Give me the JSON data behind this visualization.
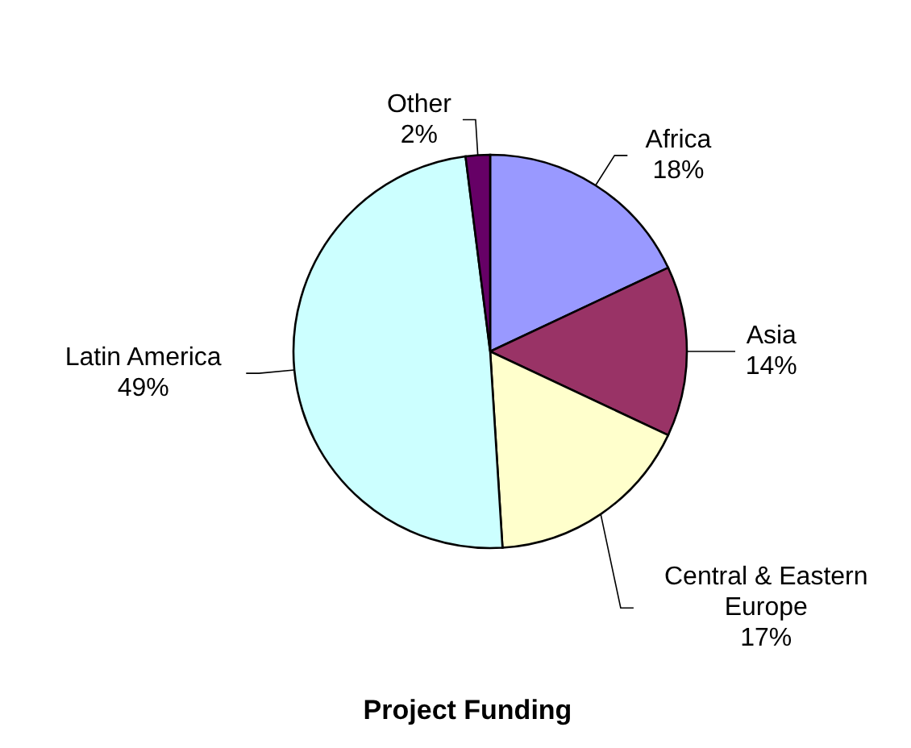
{
  "chart_data": {
    "type": "pie",
    "title": "Project Funding",
    "categories": [
      "Africa",
      "Asia",
      "Central & Eastern Europe",
      "Latin America",
      "Other"
    ],
    "values": [
      18,
      14,
      17,
      49,
      2
    ],
    "value_labels": [
      "18%",
      "14%",
      "17%",
      "49%",
      "2%"
    ],
    "colors": [
      "#9999ff",
      "#993366",
      "#ffffcc",
      "#ccffff",
      "#660066"
    ]
  }
}
